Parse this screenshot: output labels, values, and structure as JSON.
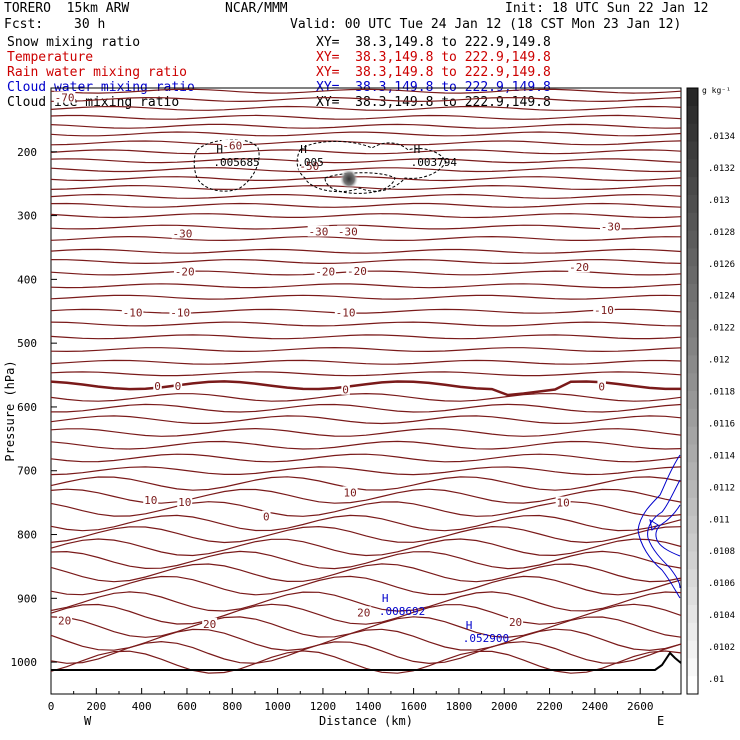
{
  "header": {
    "model": "TORERO  15km ARW",
    "center": "NCAR/MMM",
    "init": "Init: 18 UTC Sun 22 Jan 12",
    "fcst_label": "Fcst:",
    "fcst_value": "30 h",
    "valid": "Valid: 00 UTC Tue 24 Jan 12 (18 CST Mon 23 Jan 12)"
  },
  "fields": [
    {
      "name": "Snow mixing ratio",
      "xy": "XY=  38.3,149.8 to 222.9,149.8",
      "color": "#000000",
      "xy_color": "#000000"
    },
    {
      "name": "Temperature",
      "xy": "XY=  38.3,149.8 to 222.9,149.8",
      "color": "#cc0000",
      "xy_color": "#cc0000"
    },
    {
      "name": "Rain water mixing ratio",
      "xy": "XY=  38.3,149.8 to 222.9,149.8",
      "color": "#cc0000",
      "xy_color": "#cc0000"
    },
    {
      "name": "Cloud water mixing ratio",
      "xy": "XY=  38.3,149.8 to 222.9,149.8",
      "color": "#0000cc",
      "xy_color": "#0000cc"
    },
    {
      "name": "Cloud ice mixing ratio",
      "xy": "XY=  38.3,149.8 to 222.9,149.8",
      "color": "#000000",
      "xy_color": "#000000"
    }
  ],
  "chart_data": {
    "type": "contour",
    "xlabel": "Distance (km)",
    "ylabel": "Pressure (hPa)",
    "xlim": [
      0,
      2780
    ],
    "ylim": [
      1050,
      100
    ],
    "x_ticks": [
      0,
      200,
      400,
      600,
      800,
      1000,
      1200,
      1400,
      1600,
      1800,
      2000,
      2200,
      2400,
      2600
    ],
    "y_ticks": [
      200,
      300,
      400,
      500,
      600,
      700,
      800,
      900,
      1000
    ],
    "x_end_labels": {
      "left": "W",
      "right": "E"
    },
    "temperature_labels": [
      {
        "text": "-70",
        "x": 60,
        "p": 115
      },
      {
        "text": "-60",
        "x": 800,
        "p": 190
      },
      {
        "text": "-50",
        "x": 1140,
        "p": 222
      },
      {
        "text": "-30",
        "x": 580,
        "p": 328
      },
      {
        "text": "-30",
        "x": 1180,
        "p": 325
      },
      {
        "text": "-30",
        "x": 1310,
        "p": 325
      },
      {
        "text": "-30",
        "x": 2470,
        "p": 317
      },
      {
        "text": "-20",
        "x": 590,
        "p": 388
      },
      {
        "text": "-20",
        "x": 1210,
        "p": 388
      },
      {
        "text": "-20",
        "x": 1350,
        "p": 387
      },
      {
        "text": "-20",
        "x": 2330,
        "p": 381
      },
      {
        "text": "-10",
        "x": 360,
        "p": 452
      },
      {
        "text": "-10",
        "x": 570,
        "p": 452
      },
      {
        "text": "-10",
        "x": 1300,
        "p": 452
      },
      {
        "text": "-10",
        "x": 2440,
        "p": 448
      },
      {
        "text": "0",
        "x": 470,
        "p": 567
      },
      {
        "text": "0",
        "x": 560,
        "p": 567
      },
      {
        "text": "0",
        "x": 1300,
        "p": 573
      },
      {
        "text": "0",
        "x": 2430,
        "p": 568
      },
      {
        "text": "10",
        "x": 440,
        "p": 746
      },
      {
        "text": "10",
        "x": 590,
        "p": 749
      },
      {
        "text": "10",
        "x": 1320,
        "p": 734
      },
      {
        "text": "10",
        "x": 2260,
        "p": 750
      },
      {
        "text": "0",
        "x": 950,
        "p": 772
      },
      {
        "text": "20",
        "x": 60,
        "p": 935
      },
      {
        "text": "20",
        "x": 700,
        "p": 940
      },
      {
        "text": "20",
        "x": 1380,
        "p": 922
      },
      {
        "text": "20",
        "x": 2050,
        "p": 937
      }
    ],
    "extrema": [
      {
        "label": "H",
        "value": ".005685",
        "x": 730,
        "p": 202,
        "color": "#000000"
      },
      {
        "label": "H",
        "value": ".005",
        "x": 1100,
        "p": 202,
        "color": "#000000"
      },
      {
        "label": "H",
        "value": ".003794",
        "x": 1600,
        "p": 202,
        "color": "#000000"
      },
      {
        "label": "H",
        "value": ".008692",
        "x": 1460,
        "p": 906,
        "color": "#0000cc"
      },
      {
        "label": "H",
        "value": ".052900",
        "x": 1830,
        "p": 948,
        "color": "#0000cc"
      }
    ],
    "colorbar": {
      "unit": "g kg⁻¹",
      "ticks": [
        ".0134",
        ".0132",
        ".013",
        ".0128",
        ".0126",
        ".0124",
        ".0122",
        ".012",
        ".0118",
        ".0116",
        ".0114",
        ".0112",
        ".011",
        ".0108",
        ".0106",
        ".0104",
        ".0102",
        ".01"
      ]
    }
  }
}
